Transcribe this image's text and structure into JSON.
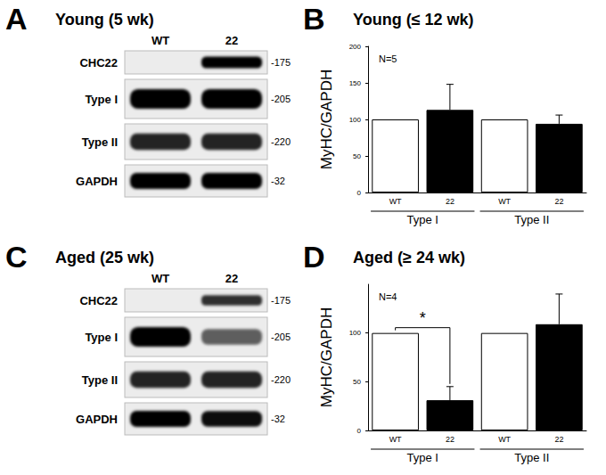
{
  "blots": [
    {
      "panel": "A",
      "title": "Young (5 wk)",
      "lanes": [
        "WT",
        "22"
      ],
      "rows": [
        {
          "label": "CHC22",
          "kda": "-175",
          "intensity": [
            0,
            1
          ]
        },
        {
          "label": "Type I",
          "kda": "-205",
          "intensity": [
            1,
            1
          ]
        },
        {
          "label": "Type II",
          "kda": "-220",
          "intensity": [
            0.85,
            0.85
          ]
        },
        {
          "label": "GAPDH",
          "kda": "-32",
          "intensity": [
            1,
            1
          ]
        }
      ]
    },
    {
      "panel": "C",
      "title": "Aged (25 wk)",
      "lanes": [
        "WT",
        "22"
      ],
      "rows": [
        {
          "label": "CHC22",
          "kda": "-175",
          "intensity": [
            0,
            0.8
          ]
        },
        {
          "label": "Type I",
          "kda": "-205",
          "intensity": [
            1,
            0.6
          ]
        },
        {
          "label": "Type II",
          "kda": "-220",
          "intensity": [
            0.85,
            0.85
          ]
        },
        {
          "label": "GAPDH",
          "kda": "-32",
          "intensity": [
            1,
            0.95
          ]
        }
      ]
    }
  ],
  "chart_data": [
    {
      "panel": "B",
      "type": "bar",
      "title": "Young (≤ 12 wk)",
      "y_label": "MyHC/GAPDH",
      "annotations": [
        "N=5"
      ],
      "categories": [
        "WT",
        "22",
        "WT",
        "22"
      ],
      "groups": [
        {
          "label": "Type I",
          "span": [
            0,
            1
          ]
        },
        {
          "label": "Type II",
          "span": [
            2,
            3
          ]
        }
      ],
      "values": [
        100,
        113,
        100,
        94
      ],
      "errors": [
        null,
        35,
        null,
        12
      ],
      "colors": [
        "#ffffff",
        "#000000",
        "#ffffff",
        "#000000"
      ],
      "ylim": [
        0,
        200
      ],
      "yticks": [
        0,
        50,
        100,
        150,
        200
      ],
      "grid": false
    },
    {
      "panel": "D",
      "type": "bar",
      "title": "Aged (≥ 24 wk)",
      "y_label": "MyHC/GAPDH",
      "annotations": [
        "N=4"
      ],
      "categories": [
        "WT",
        "22",
        "WT",
        "22"
      ],
      "groups": [
        {
          "label": "Type I",
          "span": [
            0,
            1
          ]
        },
        {
          "label": "Type II",
          "span": [
            2,
            3
          ]
        }
      ],
      "values": [
        100,
        31,
        100,
        109
      ],
      "errors": [
        null,
        14,
        null,
        31
      ],
      "colors": [
        "#ffffff",
        "#000000",
        "#ffffff",
        "#000000"
      ],
      "significance": [
        {
          "between": [
            0,
            1
          ],
          "label": "*"
        }
      ],
      "ylim": [
        0,
        150
      ],
      "yticks": [
        0,
        50,
        100
      ],
      "grid": false
    }
  ]
}
